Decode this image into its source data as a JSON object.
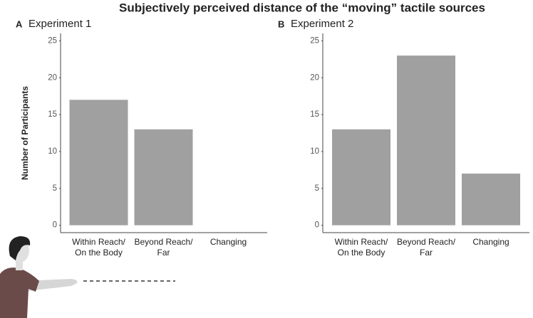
{
  "title": "Subjectively perceived distance of the “moving” tactile sources",
  "chart_data": [
    {
      "type": "bar",
      "panel": "A",
      "title": "Experiment 1",
      "y_label": "Number of Participants",
      "categories": [
        [
          "Within Reach/",
          "On the Body"
        ],
        [
          "Beyond Reach/",
          "Far"
        ],
        [
          "Changing"
        ]
      ],
      "values": [
        17,
        13,
        0
      ],
      "color": "#a0a0a0",
      "ylim": [
        -1,
        26
      ],
      "yticks": [
        0,
        5,
        10,
        15,
        20,
        25
      ]
    },
    {
      "type": "bar",
      "panel": "B",
      "title": "Experiment 2",
      "categories": [
        [
          "Within Reach/",
          "On the Body"
        ],
        [
          "Beyond Reach/",
          "Far"
        ],
        [
          "Changing"
        ]
      ],
      "values": [
        13,
        23,
        7
      ],
      "color": "#a0a0a0",
      "ylim": [
        -1,
        26
      ],
      "yticks": [
        0,
        5,
        10,
        15,
        20,
        25
      ]
    }
  ]
}
